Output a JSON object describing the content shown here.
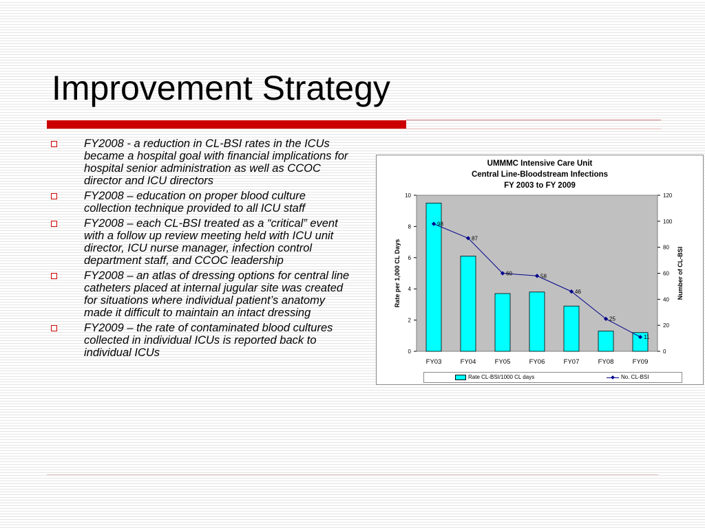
{
  "slide": {
    "title": "Improvement Strategy",
    "bullets": [
      "FY2008 -  a reduction in CL-BSI rates in the ICUs became a hospital goal with financial implications for hospital senior administration as well as CCOC director and ICU directors",
      "FY2008 – education on proper blood culture collection technique provided to all ICU staff",
      "FY2008 – each CL-BSI treated as a “critical” event with a follow up review meeting held with ICU unit director, ICU nurse manager, infection control department staff, and CCOC leadership",
      "FY2008 – an atlas of dressing options for central line catheters placed at internal jugular site was created for situations where individual patient’s anatomy made it difficult to maintain an intact dressing",
      "FY2009 – the rate of contaminated blood cultures collected in individual ICUs is reported back to individual ICUs"
    ],
    "accent_color": "#cc0000"
  },
  "chart_data": {
    "type": "bar",
    "title": "UMMMC Intensive Care Unit",
    "subtitle": "Central Line-Bloodstream Infections",
    "subtitle2": "FY 2003 to FY 2009",
    "categories": [
      "FY03",
      "FY04",
      "FY05",
      "FY06",
      "FY07",
      "FY08",
      "FY09"
    ],
    "series": [
      {
        "name": "Rate CL-BSI/1000 CL days",
        "type": "bar",
        "axis": "left",
        "color": "#00ffff",
        "values": [
          9.5,
          6.1,
          3.7,
          3.8,
          2.9,
          1.3,
          1.2
        ]
      },
      {
        "name": "No. CL-BSI",
        "type": "line",
        "axis": "right",
        "color": "#00008b",
        "values": [
          98,
          87,
          60,
          58,
          46,
          25,
          11
        ],
        "labels": [
          "98",
          "87",
          "60",
          "58",
          "46",
          "25",
          "11"
        ]
      }
    ],
    "ylabel": "Rate per 1,000 CL Days",
    "y2label": "Number of CL-BSI",
    "ylim": [
      0,
      10
    ],
    "y2lim": [
      0,
      120
    ],
    "yticks": [
      "0",
      "2",
      "4",
      "6",
      "8",
      "10"
    ],
    "y2ticks": [
      "0",
      "20",
      "40",
      "60",
      "80",
      "100",
      "120"
    ],
    "plot_background": "#c0c0c0",
    "legend_position": "bottom"
  }
}
